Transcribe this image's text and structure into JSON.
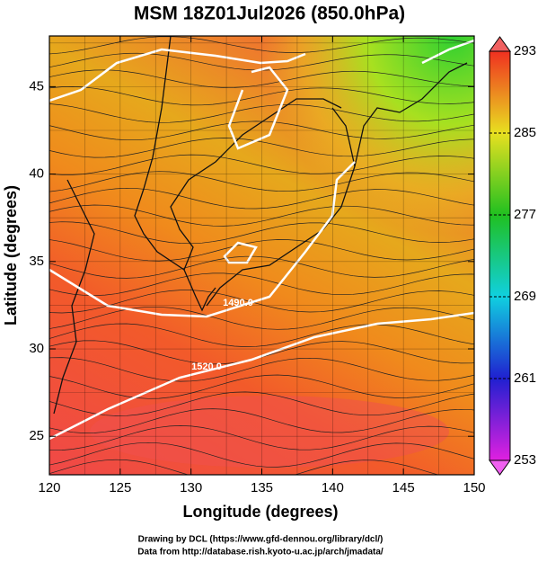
{
  "title": "MSM 18Z01Jul2026 (850.0hPa)",
  "x_axis": {
    "label": "Longitude (degrees)",
    "lim": [
      120,
      150
    ],
    "ticks": [
      120,
      125,
      130,
      135,
      140,
      145,
      150
    ]
  },
  "y_axis": {
    "label": "Latitude  (degrees)",
    "lim": [
      22.8,
      47.9
    ],
    "ticks": [
      25,
      30,
      35,
      40,
      45
    ]
  },
  "colorbar": {
    "lim": [
      253,
      293
    ],
    "ticks": [
      253,
      261,
      269,
      277,
      285,
      293
    ]
  },
  "contour_labels": [
    "1490.0",
    "1520.0"
  ],
  "footer": [
    "Drawing by DCL (https://www.gfd-dennou.org/library/dcl/)",
    "Data from http://database.rish.kyoto-u.ac.jp/arch/jmadata/"
  ]
}
